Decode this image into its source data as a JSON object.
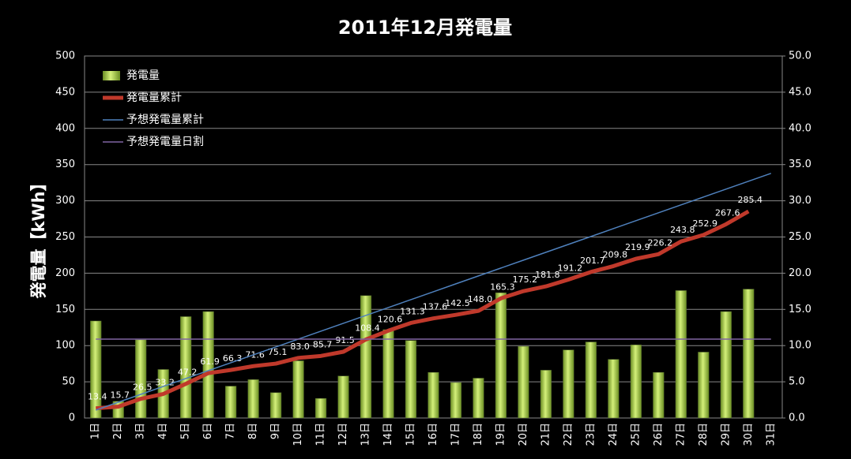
{
  "chart_data": {
    "type": "combo",
    "title": "2011年12月発電量",
    "y_label": "発電量【kWh】",
    "categories": [
      "1日",
      "2日",
      "3日",
      "4日",
      "5日",
      "6日",
      "7日",
      "8日",
      "9日",
      "10日",
      "11日",
      "12日",
      "13日",
      "14日",
      "15日",
      "16日",
      "17日",
      "18日",
      "19日",
      "20日",
      "21日",
      "22日",
      "23日",
      "24日",
      "25日",
      "26日",
      "27日",
      "28日",
      "29日",
      "30日",
      "31日"
    ],
    "ylim": [
      0,
      500
    ],
    "yticks": [
      0,
      50,
      100,
      150,
      200,
      250,
      300,
      350,
      400,
      450,
      500
    ],
    "y2lim": [
      0,
      50
    ],
    "y2ticks": [
      {
        "value": 0,
        "label": "0.0"
      },
      {
        "value": 5,
        "label": "5.0"
      },
      {
        "value": 10,
        "label": "10.0"
      },
      {
        "value": 15,
        "label": "15.0"
      },
      {
        "value": 20,
        "label": "20.0"
      },
      {
        "value": 25,
        "label": "25.0"
      },
      {
        "value": 30,
        "label": "30.0"
      },
      {
        "value": 35,
        "label": "35.0"
      },
      {
        "value": 40,
        "label": "40.0"
      },
      {
        "value": 45,
        "label": "45.0"
      },
      {
        "value": 50,
        "label": "50.0"
      }
    ],
    "grid": true,
    "legend": "upper left",
    "series": [
      {
        "name": "発電量",
        "type": "bar",
        "axis": "y2",
        "color": "#9acd32",
        "values": [
          13.4,
          2.3,
          10.8,
          6.7,
          14.0,
          14.7,
          4.4,
          5.3,
          3.5,
          7.9,
          2.7,
          5.8,
          16.9,
          12.2,
          10.7,
          6.3,
          4.9,
          5.5,
          17.3,
          9.9,
          6.6,
          9.4,
          10.5,
          8.1,
          10.1,
          6.3,
          17.6,
          9.1,
          14.7,
          17.8,
          null
        ]
      },
      {
        "name": "発電量累計",
        "type": "line",
        "axis": "y",
        "color": "#c0392b",
        "values": [
          13.4,
          15.7,
          26.5,
          33.2,
          47.2,
          61.9,
          66.3,
          71.6,
          75.1,
          83.0,
          85.7,
          91.5,
          108.4,
          120.6,
          131.3,
          137.6,
          142.5,
          148.0,
          165.3,
          175.2,
          181.8,
          191.2,
          201.7,
          209.8,
          219.9,
          226.2,
          243.8,
          252.9,
          267.6,
          285.4,
          null
        ],
        "value_labels": [
          "13.4",
          "15.7",
          "26.5",
          "33.2",
          "47.2",
          "61.9",
          "66.3",
          "71.6",
          "75.1",
          "83.0",
          "85.7",
          "91.5",
          "108.4",
          "120.6",
          "131.3",
          "137.6",
          "142.5",
          "148.0",
          "165.3",
          "175.2",
          "181.8",
          "191.2",
          "201.7",
          "209.8",
          "219.9",
          "226.2",
          "243.8",
          "252.9",
          "267.6",
          "285.4",
          null
        ]
      },
      {
        "name": "予想発電量累計",
        "type": "line",
        "axis": "y",
        "color": "#4f81bd",
        "values": [
          10.9,
          21.8,
          32.7,
          43.6,
          54.5,
          65.4,
          76.3,
          87.2,
          98.1,
          109.0,
          119.9,
          130.8,
          141.7,
          152.6,
          163.5,
          174.4,
          185.3,
          196.2,
          207.1,
          218.0,
          228.9,
          239.8,
          250.7,
          261.6,
          272.5,
          283.4,
          294.3,
          305.2,
          316.1,
          327.0,
          337.9
        ]
      },
      {
        "name": "予想発電量日割",
        "type": "line",
        "axis": "y2",
        "color": "#8064a2",
        "values": [
          10.9,
          10.9,
          10.9,
          10.9,
          10.9,
          10.9,
          10.9,
          10.9,
          10.9,
          10.9,
          10.9,
          10.9,
          10.9,
          10.9,
          10.9,
          10.9,
          10.9,
          10.9,
          10.9,
          10.9,
          10.9,
          10.9,
          10.9,
          10.9,
          10.9,
          10.9,
          10.9,
          10.9,
          10.9,
          10.9,
          10.9
        ]
      }
    ]
  }
}
